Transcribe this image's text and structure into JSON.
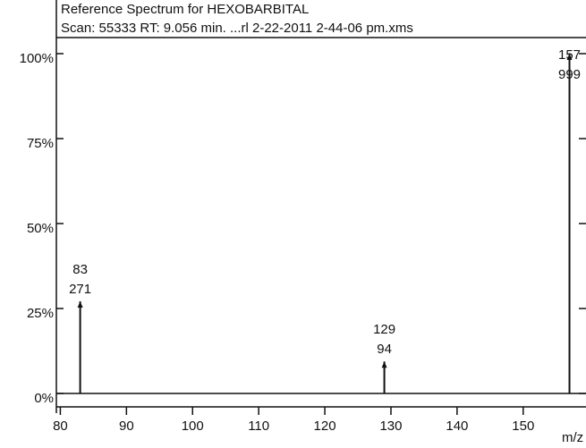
{
  "chart_data": {
    "type": "bar",
    "title": "Reference Spectrum for HEXOBARBITAL",
    "subtitle": "Scan: 55333 RT: 9.056 min. ...rl 2-22-2011 2-44-06 pm.xms",
    "x_label": "m/z",
    "x": [
      83,
      129,
      157
    ],
    "values": [
      27.1,
      9.4,
      100
    ],
    "intensities": [
      271,
      94,
      999
    ],
    "color": "#111111",
    "xlim": [
      79.4,
      159.5
    ],
    "ylim": [
      0,
      100
    ],
    "xticks": [
      80,
      90,
      100,
      110,
      120,
      130,
      140,
      150
    ],
    "yticks": [
      {
        "value": 0,
        "label": "0%"
      },
      {
        "value": 25,
        "label": "25%"
      },
      {
        "value": 50,
        "label": "50%"
      },
      {
        "value": 75,
        "label": "75%"
      },
      {
        "value": 100,
        "label": "100%"
      }
    ]
  }
}
